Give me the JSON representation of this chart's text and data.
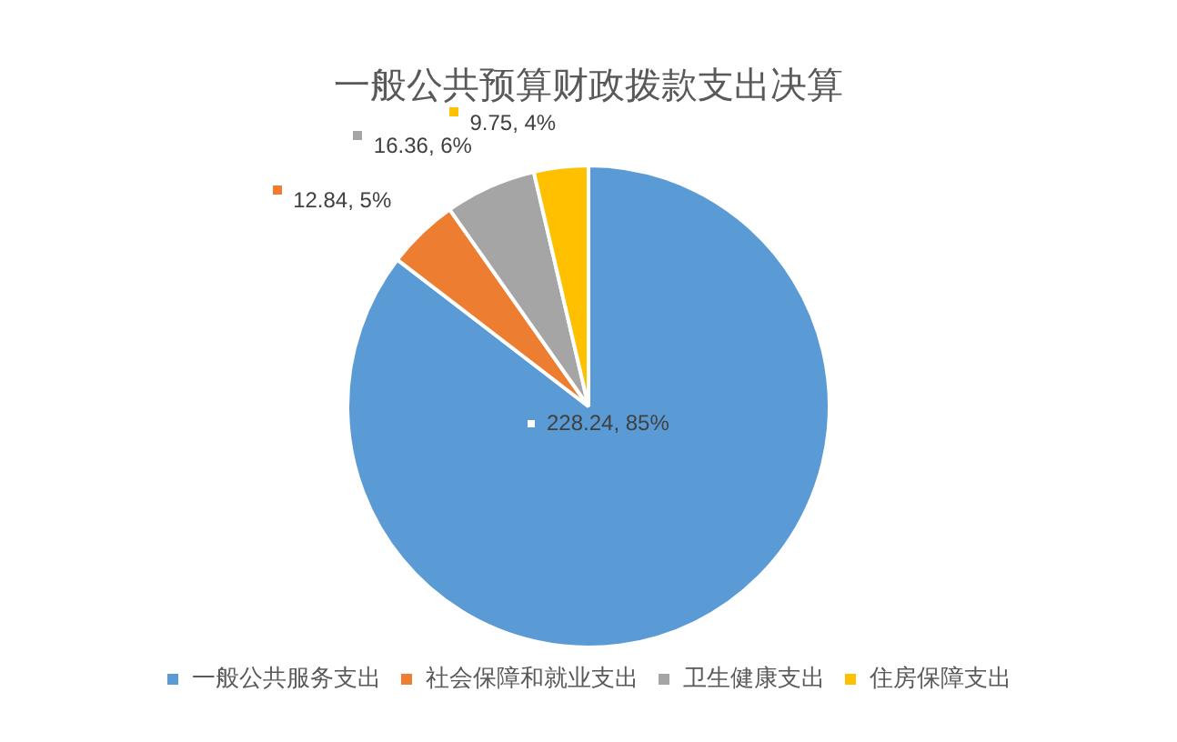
{
  "chart_data": {
    "type": "pie",
    "title": "一般公共预算财政拨款支出决算",
    "categories": [
      "一般公共服务支出",
      "社会保障和就业支出",
      "卫生健康支出",
      "住房保障支出"
    ],
    "values": [
      228.24,
      12.84,
      16.36,
      9.75
    ],
    "colors": [
      "#5b9bd5",
      "#ed7d31",
      "#a5a5a5",
      "#ffc000"
    ],
    "value_labels": [
      "228.24, 85%",
      "12.84, 5%",
      "16.36, 6%",
      "9.75, 4%"
    ],
    "legend": "bottom"
  }
}
